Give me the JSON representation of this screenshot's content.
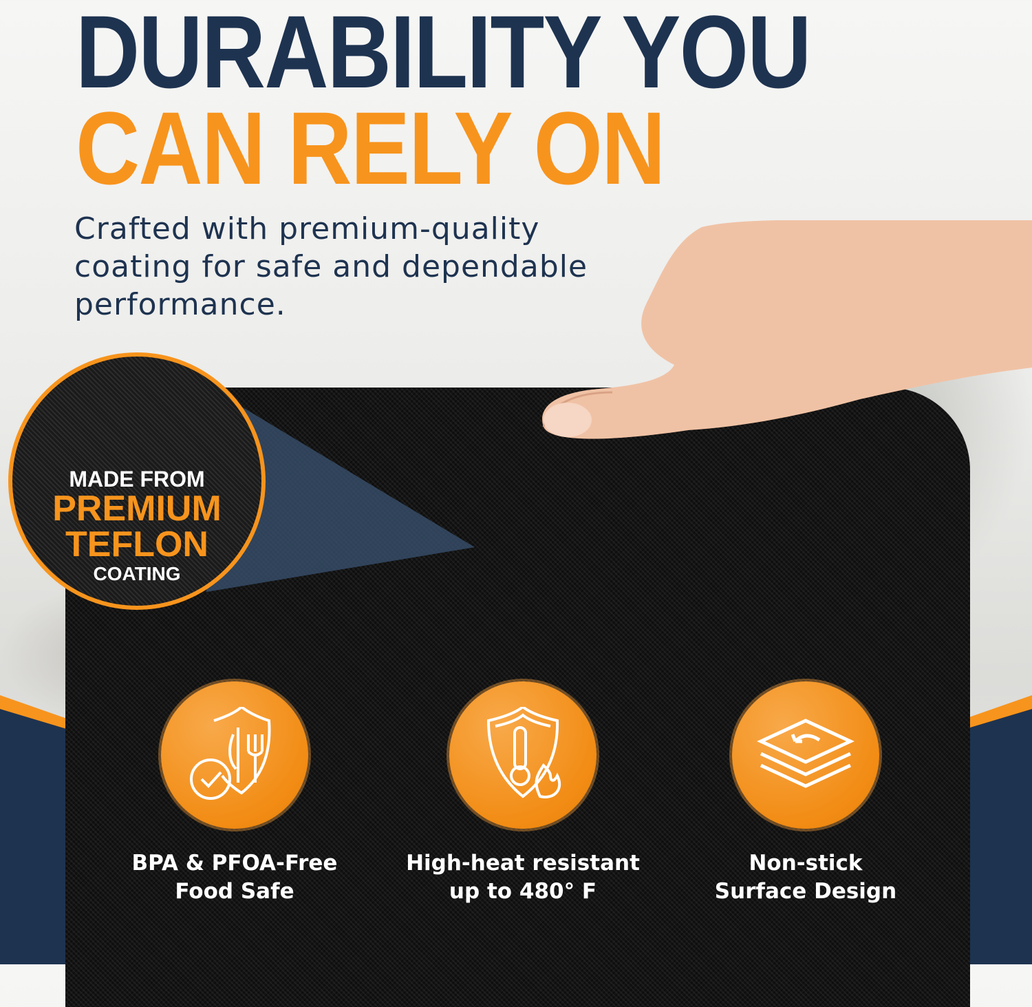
{
  "headline": {
    "line1": "DURABILITY YOU",
    "line2": "CAN RELY ON"
  },
  "subtitle": [
    "Crafted with premium-quality",
    "coating for safe and dependable",
    "performance."
  ],
  "badge": {
    "line1": "MADE FROM",
    "line2": "PREMIUM",
    "line3": "TEFLON",
    "line4": "COATING"
  },
  "features": [
    {
      "icon": "shield-utensils-check-icon",
      "line1": "BPA & PFOA-Free",
      "line2": "Food Safe"
    },
    {
      "icon": "shield-thermometer-flame-icon",
      "line1": "High-heat resistant",
      "line2": "up to 480° F"
    },
    {
      "icon": "stacked-layers-icon",
      "line1": "Non-stick",
      "line2": "Surface Design"
    }
  ],
  "colors": {
    "navy": "#1e3350",
    "orange": "#f7941d",
    "mat": "#141414"
  }
}
